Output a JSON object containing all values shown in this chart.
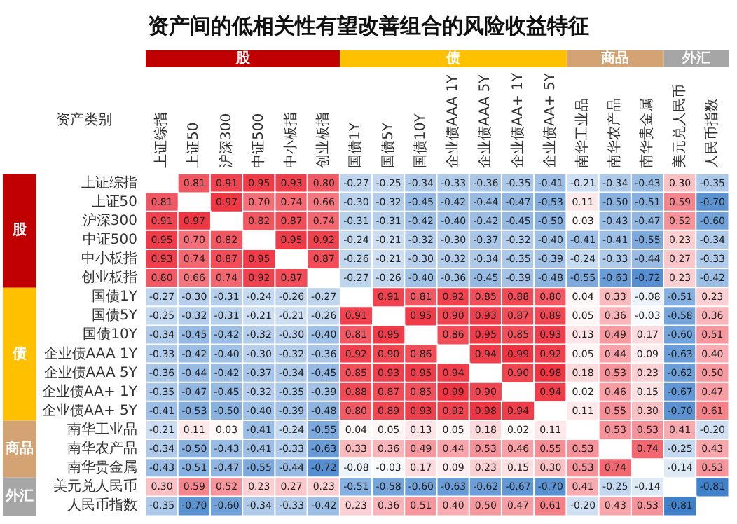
{
  "chart_data": {
    "type": "heatmap",
    "title": "资产间的低相关性有望改善组合的风险收益特征",
    "ylabel": "资产类别",
    "categories": [
      "上证综指",
      "上证50",
      "沪深300",
      "中证500",
      "中小板指",
      "创业板指",
      "国债1Y",
      "国债5Y",
      "国债10Y",
      "企业债AAA 1Y",
      "企业债AAA 5Y",
      "企业债AA+ 1Y",
      "企业债AA+ 5Y",
      "南华工业品",
      "南华农产品",
      "南华贵金属",
      "美元兑人民币",
      "人民币指数"
    ],
    "y_categories": [
      "上证综指",
      "上证50",
      "沪深300",
      "中证500",
      "中小板指",
      "创业板指",
      "国债1Y",
      "国债5Y",
      "国债10Y",
      "企业债AAA 1Y",
      "企业债AAA 5Y",
      "企业债AA+ 1Y",
      "企业债AA+ 5Y",
      "南华工业品",
      "南华农产品",
      "南华贵金属",
      "美元兑人民币",
      "人民币指数"
    ],
    "cells": [
      [
        null,
        0.81,
        0.91,
        0.95,
        0.93,
        0.8,
        -0.27,
        -0.25,
        -0.34,
        -0.33,
        -0.36,
        -0.35,
        -0.41,
        -0.21,
        -0.34,
        -0.43,
        0.3,
        -0.35
      ],
      [
        0.81,
        null,
        0.97,
        0.7,
        0.74,
        0.66,
        -0.3,
        -0.32,
        -0.45,
        -0.42,
        -0.44,
        -0.47,
        -0.53,
        0.11,
        -0.5,
        -0.51,
        0.59,
        -0.7
      ],
      [
        0.91,
        0.97,
        null,
        0.82,
        0.87,
        0.74,
        -0.31,
        -0.31,
        -0.42,
        -0.4,
        -0.42,
        -0.45,
        -0.5,
        0.03,
        -0.43,
        -0.47,
        0.52,
        -0.6
      ],
      [
        0.95,
        0.7,
        0.82,
        null,
        0.95,
        0.92,
        -0.24,
        -0.21,
        -0.32,
        -0.3,
        -0.37,
        -0.32,
        -0.4,
        -0.41,
        -0.41,
        -0.55,
        0.23,
        -0.34
      ],
      [
        0.93,
        0.74,
        0.87,
        0.95,
        null,
        0.87,
        -0.26,
        -0.21,
        -0.3,
        -0.32,
        -0.34,
        -0.35,
        -0.39,
        -0.24,
        -0.33,
        -0.44,
        0.27,
        -0.33
      ],
      [
        0.8,
        0.66,
        0.74,
        0.92,
        0.87,
        null,
        -0.27,
        -0.26,
        -0.4,
        -0.36,
        -0.45,
        -0.39,
        -0.48,
        -0.55,
        -0.63,
        -0.72,
        0.23,
        -0.42
      ],
      [
        -0.27,
        -0.3,
        -0.31,
        -0.24,
        -0.26,
        -0.27,
        null,
        0.91,
        0.81,
        0.92,
        0.85,
        0.88,
        0.8,
        0.04,
        0.33,
        -0.08,
        -0.51,
        0.23
      ],
      [
        -0.25,
        -0.32,
        -0.31,
        -0.21,
        -0.21,
        -0.26,
        0.91,
        null,
        0.95,
        0.9,
        0.93,
        0.87,
        0.89,
        0.05,
        0.36,
        -0.03,
        -0.58,
        0.36
      ],
      [
        -0.34,
        -0.45,
        -0.42,
        -0.32,
        -0.3,
        -0.4,
        0.81,
        0.95,
        null,
        0.86,
        0.95,
        0.85,
        0.93,
        0.13,
        0.49,
        0.17,
        -0.6,
        0.51
      ],
      [
        -0.33,
        -0.42,
        -0.4,
        -0.3,
        -0.32,
        -0.36,
        0.92,
        0.9,
        0.86,
        null,
        0.94,
        0.99,
        0.92,
        0.05,
        0.44,
        0.09,
        -0.63,
        0.4
      ],
      [
        -0.36,
        -0.44,
        -0.42,
        -0.37,
        -0.34,
        -0.45,
        0.85,
        0.93,
        0.95,
        0.94,
        null,
        0.9,
        0.98,
        0.18,
        0.53,
        0.23,
        -0.62,
        0.5
      ],
      [
        -0.35,
        -0.47,
        -0.45,
        -0.32,
        -0.35,
        -0.39,
        0.88,
        0.87,
        0.85,
        0.99,
        0.9,
        null,
        0.94,
        0.02,
        0.46,
        0.15,
        -0.67,
        0.47
      ],
      [
        -0.41,
        -0.53,
        -0.5,
        -0.4,
        -0.39,
        -0.48,
        0.8,
        0.89,
        0.93,
        0.92,
        0.98,
        0.94,
        null,
        0.11,
        0.55,
        0.3,
        -0.7,
        0.61
      ],
      [
        -0.21,
        0.11,
        0.03,
        -0.41,
        -0.24,
        -0.55,
        0.04,
        0.05,
        0.13,
        0.05,
        0.18,
        0.02,
        0.11,
        null,
        0.53,
        0.53,
        0.41,
        -0.2
      ],
      [
        -0.34,
        -0.5,
        -0.43,
        -0.41,
        -0.33,
        -0.63,
        0.33,
        0.36,
        0.49,
        0.44,
        0.53,
        0.46,
        0.55,
        0.53,
        null,
        0.74,
        -0.25,
        0.43
      ],
      [
        -0.43,
        -0.51,
        -0.47,
        -0.55,
        -0.44,
        -0.72,
        -0.08,
        -0.03,
        0.17,
        0.09,
        0.23,
        0.15,
        0.3,
        0.53,
        0.74,
        null,
        -0.14,
        0.53
      ],
      [
        0.3,
        0.59,
        0.52,
        0.23,
        0.27,
        0.23,
        -0.51,
        -0.58,
        -0.6,
        -0.63,
        -0.62,
        -0.67,
        -0.7,
        0.41,
        -0.25,
        -0.14,
        null,
        -0.81
      ],
      [
        -0.35,
        -0.7,
        -0.6,
        -0.34,
        -0.33,
        -0.42,
        0.23,
        0.36,
        0.51,
        0.4,
        0.5,
        0.47,
        0.61,
        -0.2,
        0.43,
        0.53,
        -0.81,
        null
      ]
    ],
    "cell_labels": [
      [
        null,
        "0.81",
        "0.91",
        "0.95",
        "0.93",
        "0.80",
        "-0.27",
        "-0.25",
        "-0.34",
        "-0.33",
        "-0.36",
        "-0.35",
        "-0.41",
        "-0.21",
        "-0.34",
        "-0.43",
        "0.30",
        "-0.35"
      ],
      [
        "0.81",
        null,
        "0.97",
        "0.70",
        "0.74",
        "0.66",
        "-0.30",
        "-0.32",
        "-0.45",
        "-0.42",
        "-0.44",
        "-0.47",
        "-0.53",
        "0.11",
        "-0.50",
        "-0.51",
        "0.59",
        "-0.70"
      ],
      [
        "0.91",
        "0.97",
        null,
        "0.82",
        "0.87",
        "0.74",
        "-0.31",
        "-0.31",
        "-0.42",
        "-0.40",
        "-0.42",
        "-0.45",
        "-0.50",
        "0.03",
        "-0.43",
        "-0.47",
        "0.52",
        "-0.60"
      ],
      [
        "0.95",
        "0.70",
        "0.82",
        null,
        "0.95",
        "0.92",
        "-0.24",
        "-0.21",
        "-0.32",
        "-0.30",
        "-0.37",
        "-0.32",
        "-0.40",
        "-0.41",
        "-0.41",
        "-0.55",
        "0.23",
        "-0.34"
      ],
      [
        "0.93",
        "0.74",
        "0.87",
        "0.95",
        null,
        "0.87",
        "-0.26",
        "-0.21",
        "-0.30",
        "-0.32",
        "-0.34",
        "-0.35",
        "-0.39",
        "-0.24",
        "-0.33",
        "-0.44",
        "0.27",
        "-0.33"
      ],
      [
        "0.80",
        "0.66",
        "0.74",
        "0.92",
        "0.87",
        null,
        "-0.27",
        "-0.26",
        "-0.40",
        "-0.36",
        "-0.45",
        "-0.39",
        "-0.48",
        "-0.55",
        "-0.63",
        "-0.72",
        "0.23",
        "-0.42"
      ],
      [
        "-0.27",
        "-0.30",
        "-0.31",
        "-0.24",
        "-0.26",
        "-0.27",
        null,
        "0.91",
        "0.81",
        "0.92",
        "0.85",
        "0.88",
        "0.80",
        "0.04",
        "0.33",
        "-0.08",
        "-0.51",
        "0.23"
      ],
      [
        "-0.25",
        "-0.32",
        "-0.31",
        "-0.21",
        "-0.21",
        "-0.26",
        "0.91",
        null,
        "0.95",
        "0.90",
        "0.93",
        "0.87",
        "0.89",
        "0.05",
        "0.36",
        "-0.03",
        "-0.58",
        "0.36"
      ],
      [
        "-0.34",
        "-0.45",
        "-0.42",
        "-0.32",
        "-0.30",
        "-0.40",
        "0.81",
        "0.95",
        null,
        "0.86",
        "0.95",
        "0.85",
        "0.93",
        "0.13",
        "0.49",
        "0.17",
        "-0.60",
        "0.51"
      ],
      [
        "-0.33",
        "-0.42",
        "-0.40",
        "-0.30",
        "-0.32",
        "-0.36",
        "0.92",
        "0.90",
        "0.86",
        null,
        "0.94",
        "0.99",
        "0.92",
        "0.05",
        "0.44",
        "0.09",
        "-0.63",
        "0.40"
      ],
      [
        "-0.36",
        "-0.44",
        "-0.42",
        "-0.37",
        "-0.34",
        "-0.45",
        "0.85",
        "0.93",
        "0.95",
        "0.94",
        null,
        "0.90",
        "0.98",
        "0.18",
        "0.53",
        "0.23",
        "-0.62",
        "0.50"
      ],
      [
        "-0.35",
        "-0.47",
        "-0.45",
        "-0.32",
        "-0.35",
        "-0.39",
        "0.88",
        "0.87",
        "0.85",
        "0.99",
        "0.90",
        null,
        "0.94",
        "0.02",
        "0.46",
        "0.15",
        "-0.67",
        "0.47"
      ],
      [
        "-0.41",
        "-0.53",
        "-0.50",
        "-0.40",
        "-0.39",
        "-0.48",
        "0.80",
        "0.89",
        "0.93",
        "0.92",
        "0.98",
        "0.94",
        null,
        "0.11",
        "0.55",
        "0.30",
        "-0.70",
        "0.61"
      ],
      [
        "-0.21",
        "0.11",
        "0.03",
        "-0.41",
        "-0.24",
        "-0.55",
        "0.04",
        "0.05",
        "0.13",
        "0.05",
        "0.18",
        "0.02",
        "0.11",
        null,
        "0.53",
        "0.53",
        "0.41",
        "-0.20"
      ],
      [
        "-0.34",
        "-0.50",
        "-0.43",
        "-0.41",
        "-0.33",
        "-0.63",
        "0.33",
        "0.36",
        "0.49",
        "0.44",
        "0.53",
        "0.46",
        "0.55",
        "0.53",
        null,
        "0.74",
        "-0.25",
        "0.43"
      ],
      [
        "-0.43",
        "-0.51",
        "-0.47",
        "-0.55",
        "-0.44",
        "-0.72",
        "-0.08",
        "-0.03",
        "0.17",
        "0.09",
        "0.23",
        "0.15",
        "0.30",
        "0.53",
        "0.74",
        null,
        "-0.14",
        "0.53"
      ],
      [
        "0.30",
        "0.59",
        "0.52",
        "0.23",
        "0.27",
        "0.23",
        "-0.51",
        "-0.58",
        "-0.60",
        "-0.63",
        "-0.62",
        "-0.67",
        "-0.70",
        "0.41",
        "-0.25",
        "-0.14",
        null,
        "-0.81"
      ],
      [
        "-0.35",
        "-0.70",
        "-0.60",
        "-0.34",
        "-0.33",
        "-0.42",
        "0.23",
        "0.36",
        "0.51",
        "0.40",
        "0.50",
        "0.47",
        "0.61",
        "-0.20",
        "0.43",
        "0.53",
        "-0.81",
        null
      ]
    ],
    "annotations": [
      "股",
      "债",
      "商品",
      "外汇",
      "股",
      "债",
      "商品",
      "外汇"
    ]
  }
}
